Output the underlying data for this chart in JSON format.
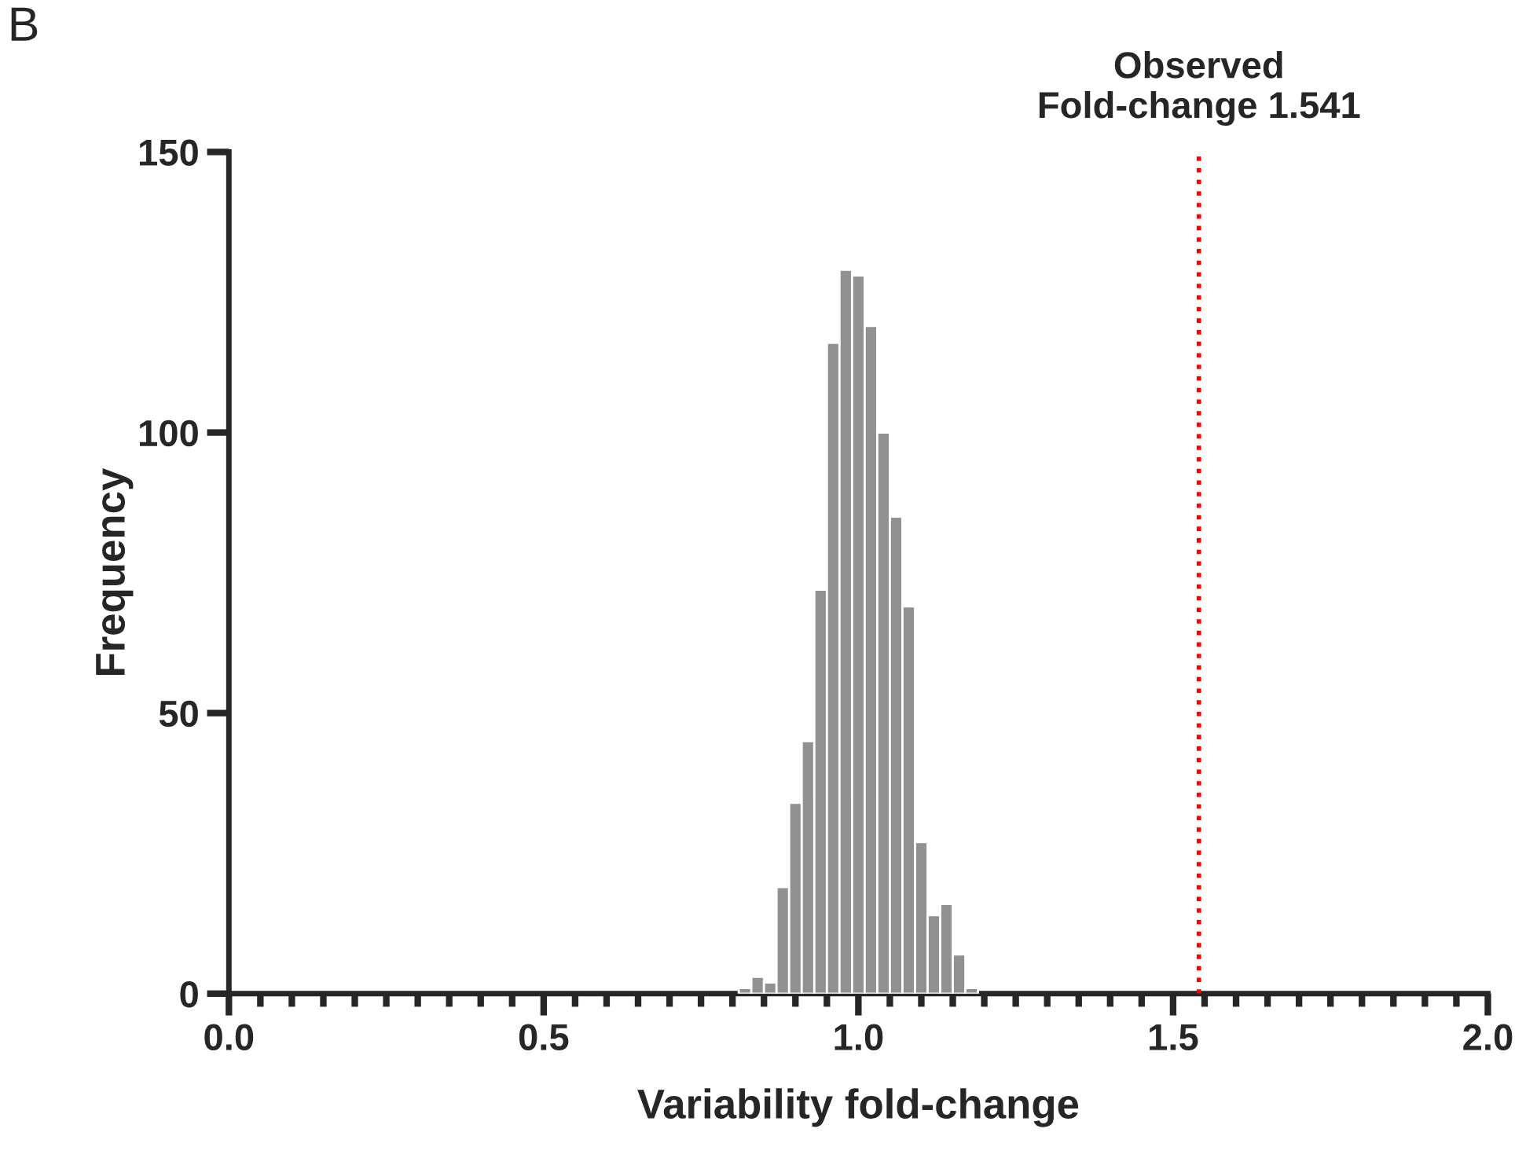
{
  "chart_data": {
    "type": "histogram",
    "bins": [
      0.81,
      0.83,
      0.85,
      0.87,
      0.89,
      0.91,
      0.93,
      0.95,
      0.97,
      0.99,
      1.01,
      1.03,
      1.05,
      1.07,
      1.09,
      1.11,
      1.13,
      1.15,
      1.17,
      1.19
    ],
    "values": [
      1,
      3,
      2,
      19,
      34,
      45,
      72,
      116,
      129,
      128,
      119,
      100,
      85,
      69,
      27,
      14,
      16,
      7,
      1
    ],
    "color": "#919191",
    "xlabel": "Variability fold-change",
    "ylabel": "Frequency",
    "xlim": [
      0,
      2.0
    ],
    "xticks": [
      {
        "value": 0,
        "label": "0.0"
      },
      0.5,
      {
        "value": 1,
        "label": "1.0"
      },
      1.5,
      {
        "value": 2,
        "label": "2.0"
      }
    ],
    "ylim": [
      0,
      150
    ],
    "yticks": [
      0,
      50,
      100,
      150
    ],
    "ref_lines": [
      {
        "axis": "x",
        "value": 1.541,
        "label": "Observed\nFold-change 1.541",
        "color": "#ff0000",
        "line_style": "dotted"
      }
    ],
    "annotations": [
      "B"
    ],
    "grid": false,
    "legend": false
  }
}
